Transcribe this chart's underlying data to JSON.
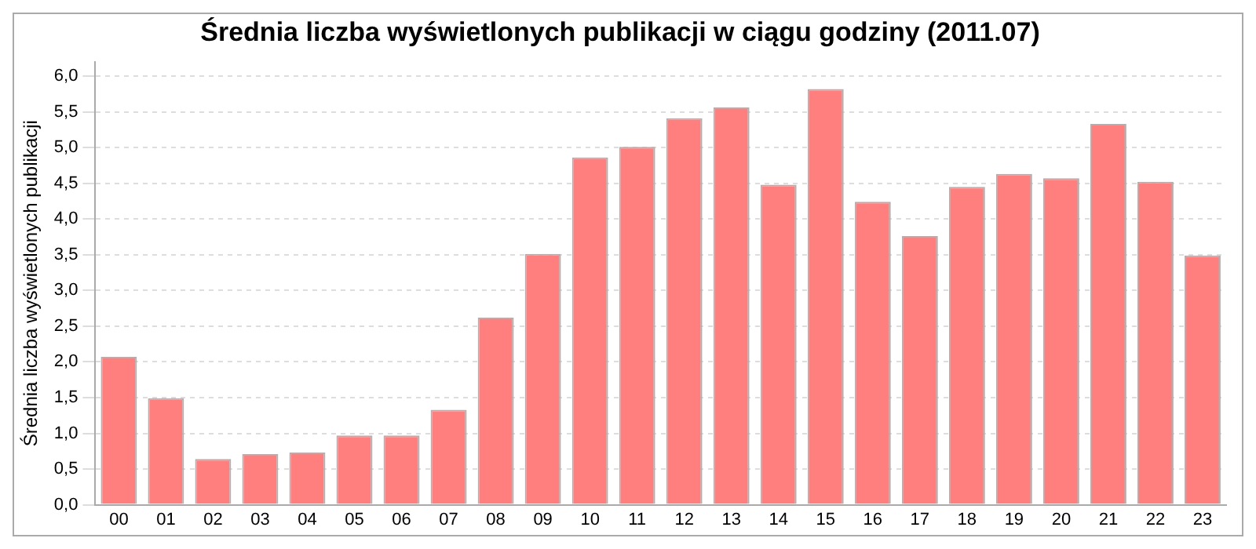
{
  "chart_data": {
    "type": "bar",
    "title": "Średnia liczba wyświetlonych publikacji w ciągu godziny (2011.07)",
    "ylabel": "Średnia liczba wyświetlonych publikacji",
    "categories": [
      "00",
      "01",
      "02",
      "03",
      "04",
      "05",
      "06",
      "07",
      "08",
      "09",
      "10",
      "11",
      "12",
      "13",
      "14",
      "15",
      "16",
      "17",
      "18",
      "19",
      "20",
      "21",
      "22",
      "23"
    ],
    "values": [
      2.07,
      1.49,
      0.64,
      0.71,
      0.73,
      0.97,
      0.97,
      1.33,
      2.62,
      3.51,
      4.86,
      5.01,
      5.41,
      5.56,
      4.48,
      5.82,
      4.24,
      3.76,
      4.45,
      4.63,
      4.57,
      5.33,
      4.52,
      3.49
    ],
    "color": "#ff7f7f",
    "ylim": [
      0,
      6.2
    ],
    "yticks": [
      {
        "value": 0,
        "label": "0,0"
      },
      {
        "value": 0.5,
        "label": "0,5"
      },
      {
        "value": 1,
        "label": "1,0"
      },
      {
        "value": 1.5,
        "label": "1,5"
      },
      {
        "value": 2,
        "label": "2,0"
      },
      {
        "value": 2.5,
        "label": "2,5"
      },
      {
        "value": 3,
        "label": "3,0"
      },
      {
        "value": 3.5,
        "label": "3,5"
      },
      {
        "value": 4,
        "label": "4,0"
      },
      {
        "value": 4.5,
        "label": "4,5"
      },
      {
        "value": 5,
        "label": "5,0"
      },
      {
        "value": 5.5,
        "label": "5,5"
      },
      {
        "value": 6,
        "label": "6,0"
      }
    ],
    "grid": "y",
    "legend": false
  }
}
